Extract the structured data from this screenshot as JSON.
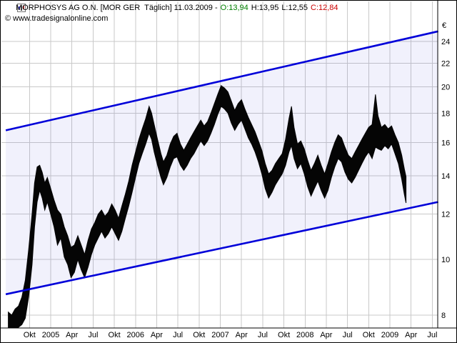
{
  "header": {
    "title": "MORPHOSYS AG O.N. [MOR GER  Täglich] 11.03.2009 -",
    "open": "O:13,94",
    "high": "H:13,95",
    "low": "L:12,55",
    "close": "C:12,84",
    "copyright": "© www.tradesignalonline.com"
  },
  "colors": {
    "open_text": "#008000",
    "close_text": "#cc0000",
    "channel_line": "#0000d9",
    "channel_fill": "rgba(80,80,216,0.08)",
    "grid": "#c9c9c9",
    "bars": "#050505",
    "axis_text": "#000000",
    "border": "#000000"
  },
  "chart_data": {
    "type": "bar",
    "subtype": "daily-ohlc-bars-with-trend-channel",
    "title": "MORPHOSYS AG O.N. [MOR GER Täglich]",
    "date_shown": "11.03.2009",
    "last_bar": {
      "open": 13.94,
      "high": 13.95,
      "low": 12.55,
      "close": 12.84
    },
    "y_axis": {
      "unit": "€",
      "ticks": [
        8,
        10,
        12,
        14,
        16,
        18,
        20,
        22,
        24
      ],
      "scale": "log",
      "position": "right"
    },
    "x_axis": {
      "labels": [
        {
          "label": "Okt",
          "t": 2004.75
        },
        {
          "label": "2005",
          "t": 2005.0
        },
        {
          "label": "Apr",
          "t": 2005.25
        },
        {
          "label": "Jul",
          "t": 2005.5
        },
        {
          "label": "Okt",
          "t": 2005.75
        },
        {
          "label": "2006",
          "t": 2006.0
        },
        {
          "label": "Apr",
          "t": 2006.25
        },
        {
          "label": "Jul",
          "t": 2006.5
        },
        {
          "label": "Okt",
          "t": 2006.75
        },
        {
          "label": "2007",
          "t": 2007.0
        },
        {
          "label": "Apr",
          "t": 2007.25
        },
        {
          "label": "Jul",
          "t": 2007.5
        },
        {
          "label": "Okt",
          "t": 2007.75
        },
        {
          "label": "2008",
          "t": 2008.0
        },
        {
          "label": "Apr",
          "t": 2008.25
        },
        {
          "label": "Jul",
          "t": 2008.5
        },
        {
          "label": "Okt",
          "t": 2008.75
        },
        {
          "label": "2009",
          "t": 2009.0
        },
        {
          "label": "Apr",
          "t": 2009.25
        },
        {
          "label": "Jul",
          "t": 2009.5
        }
      ]
    },
    "channel": {
      "upper": {
        "t1": 2004.47,
        "p1": 16.8,
        "t2": 2009.57,
        "p2": 25.0
      },
      "lower": {
        "t1": 2004.47,
        "p1": 8.7,
        "t2": 2009.57,
        "p2": 12.6
      }
    },
    "series_format": "[decimal_year, low, high]",
    "series": [
      [
        2004.5,
        7.6,
        8.1
      ],
      [
        2004.54,
        7.5,
        8.0
      ],
      [
        2004.58,
        7.6,
        8.2
      ],
      [
        2004.62,
        7.5,
        8.3
      ],
      [
        2004.66,
        7.7,
        8.6
      ],
      [
        2004.7,
        7.9,
        9.2
      ],
      [
        2004.74,
        8.6,
        10.4
      ],
      [
        2004.78,
        9.8,
        12.0
      ],
      [
        2004.81,
        11.4,
        13.6
      ],
      [
        2004.84,
        12.6,
        14.5
      ],
      [
        2004.87,
        13.2,
        14.6
      ],
      [
        2004.9,
        12.8,
        14.2
      ],
      [
        2004.93,
        12.2,
        13.6
      ],
      [
        2004.96,
        12.6,
        13.9
      ],
      [
        2005.0,
        12.0,
        13.3
      ],
      [
        2005.04,
        11.4,
        12.7
      ],
      [
        2005.08,
        10.6,
        12.2
      ],
      [
        2005.12,
        10.9,
        12.0
      ],
      [
        2005.16,
        10.1,
        11.4
      ],
      [
        2005.2,
        9.8,
        11.0
      ],
      [
        2005.24,
        9.3,
        10.5
      ],
      [
        2005.28,
        9.5,
        10.6
      ],
      [
        2005.32,
        10.0,
        11.0
      ],
      [
        2005.36,
        9.6,
        10.6
      ],
      [
        2005.4,
        9.3,
        10.2
      ],
      [
        2005.44,
        9.7,
        10.8
      ],
      [
        2005.48,
        10.2,
        11.3
      ],
      [
        2005.52,
        10.6,
        11.6
      ],
      [
        2005.56,
        10.9,
        12.0
      ],
      [
        2005.6,
        11.2,
        12.2
      ],
      [
        2005.64,
        10.9,
        11.9
      ],
      [
        2005.68,
        11.1,
        12.1
      ],
      [
        2005.72,
        11.4,
        12.5
      ],
      [
        2005.76,
        11.1,
        12.2
      ],
      [
        2005.8,
        10.8,
        11.8
      ],
      [
        2005.84,
        11.2,
        12.4
      ],
      [
        2005.88,
        11.8,
        13.0
      ],
      [
        2005.92,
        12.4,
        13.7
      ],
      [
        2005.96,
        13.1,
        14.6
      ],
      [
        2006.0,
        13.9,
        15.4
      ],
      [
        2006.04,
        14.7,
        16.2
      ],
      [
        2006.08,
        15.3,
        16.9
      ],
      [
        2006.12,
        15.9,
        17.6
      ],
      [
        2006.16,
        16.6,
        18.5
      ],
      [
        2006.19,
        16.2,
        18.0
      ],
      [
        2006.22,
        15.4,
        17.2
      ],
      [
        2006.26,
        14.6,
        16.2
      ],
      [
        2006.3,
        13.9,
        15.3
      ],
      [
        2006.33,
        13.5,
        14.8
      ],
      [
        2006.37,
        13.9,
        15.2
      ],
      [
        2006.41,
        14.5,
        15.9
      ],
      [
        2006.45,
        15.0,
        16.4
      ],
      [
        2006.49,
        15.1,
        16.6
      ],
      [
        2006.53,
        14.6,
        15.9
      ],
      [
        2006.57,
        14.3,
        15.5
      ],
      [
        2006.61,
        14.6,
        15.9
      ],
      [
        2006.65,
        15.0,
        16.3
      ],
      [
        2006.69,
        15.3,
        16.7
      ],
      [
        2006.73,
        15.7,
        17.1
      ],
      [
        2006.77,
        16.1,
        17.5
      ],
      [
        2006.81,
        15.8,
        17.1
      ],
      [
        2006.85,
        16.1,
        17.4
      ],
      [
        2006.89,
        16.6,
        18.0
      ],
      [
        2006.93,
        17.2,
        18.7
      ],
      [
        2006.97,
        17.9,
        19.4
      ],
      [
        2007.01,
        18.5,
        20.1
      ],
      [
        2007.05,
        18.3,
        19.9
      ],
      [
        2007.09,
        18.0,
        19.6
      ],
      [
        2007.13,
        17.3,
        18.9
      ],
      [
        2007.17,
        16.8,
        18.2
      ],
      [
        2007.21,
        17.2,
        18.7
      ],
      [
        2007.25,
        17.5,
        19.0
      ],
      [
        2007.29,
        16.9,
        18.3
      ],
      [
        2007.33,
        16.3,
        17.7
      ],
      [
        2007.37,
        15.9,
        17.2
      ],
      [
        2007.41,
        15.4,
        16.7
      ],
      [
        2007.45,
        14.8,
        16.1
      ],
      [
        2007.49,
        14.1,
        15.5
      ],
      [
        2007.53,
        13.3,
        14.7
      ],
      [
        2007.57,
        12.8,
        14.1
      ],
      [
        2007.61,
        13.1,
        14.3
      ],
      [
        2007.65,
        13.5,
        14.7
      ],
      [
        2007.69,
        13.8,
        15.0
      ],
      [
        2007.73,
        14.1,
        15.3
      ],
      [
        2007.77,
        14.6,
        16.2
      ],
      [
        2007.81,
        15.4,
        17.6
      ],
      [
        2007.84,
        15.8,
        18.5
      ],
      [
        2007.87,
        15.0,
        17.0
      ],
      [
        2007.91,
        14.4,
        15.9
      ],
      [
        2007.95,
        14.7,
        16.1
      ],
      [
        2007.99,
        14.1,
        15.6
      ],
      [
        2008.03,
        13.4,
        14.9
      ],
      [
        2008.07,
        12.9,
        14.3
      ],
      [
        2008.11,
        13.3,
        14.7
      ],
      [
        2008.15,
        13.7,
        15.2
      ],
      [
        2008.19,
        13.2,
        14.6
      ],
      [
        2008.23,
        12.8,
        14.1
      ],
      [
        2008.27,
        13.2,
        14.7
      ],
      [
        2008.31,
        13.9,
        15.4
      ],
      [
        2008.35,
        14.5,
        16.0
      ],
      [
        2008.39,
        15.0,
        16.5
      ],
      [
        2008.43,
        14.8,
        16.3
      ],
      [
        2008.47,
        14.2,
        15.7
      ],
      [
        2008.51,
        13.8,
        15.2
      ],
      [
        2008.55,
        13.6,
        15.0
      ],
      [
        2008.59,
        13.9,
        15.4
      ],
      [
        2008.63,
        14.3,
        15.8
      ],
      [
        2008.67,
        14.7,
        16.2
      ],
      [
        2008.71,
        15.1,
        16.6
      ],
      [
        2008.75,
        15.4,
        17.0
      ],
      [
        2008.79,
        15.0,
        17.2
      ],
      [
        2008.83,
        15.7,
        19.4
      ],
      [
        2008.86,
        15.6,
        17.8
      ],
      [
        2008.9,
        15.5,
        17.0
      ],
      [
        2008.94,
        15.8,
        17.2
      ],
      [
        2008.98,
        15.6,
        16.9
      ],
      [
        2009.02,
        15.9,
        17.1
      ],
      [
        2009.06,
        15.3,
        16.5
      ],
      [
        2009.1,
        14.7,
        16.0
      ],
      [
        2009.14,
        13.8,
        15.2
      ],
      [
        2009.17,
        13.0,
        14.4
      ],
      [
        2009.19,
        12.55,
        13.95
      ]
    ]
  }
}
